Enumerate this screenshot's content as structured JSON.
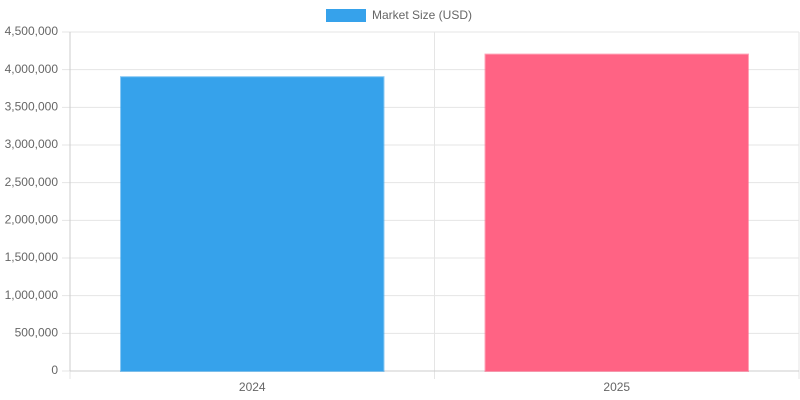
{
  "chart_data": {
    "type": "bar",
    "categories": [
      "2024",
      "2025"
    ],
    "series": [
      {
        "name": "Market Size (USD)",
        "color": "#36a2eb",
        "values": [
          3900000,
          4200000
        ]
      }
    ],
    "bar_colors": [
      "#36a2eb",
      "#ff6384"
    ],
    "ylim": [
      0,
      4500000
    ],
    "yticks": [
      0,
      {
        "value": 500000,
        "label": "500,000"
      },
      {
        "value": 1000000,
        "label": "1,000,000"
      },
      {
        "value": 1500000,
        "label": "1,500,000"
      },
      {
        "value": 2000000,
        "label": "2,000,000"
      },
      {
        "value": 2500000,
        "label": "2,500,000"
      },
      {
        "value": 3000000,
        "label": "3,000,000"
      },
      {
        "value": 3500000,
        "label": "3,500,000"
      },
      {
        "value": 4000000,
        "label": "4,000,000"
      },
      {
        "value": 4500000,
        "label": "4,500,000"
      }
    ],
    "grid": true,
    "legend": "top"
  }
}
